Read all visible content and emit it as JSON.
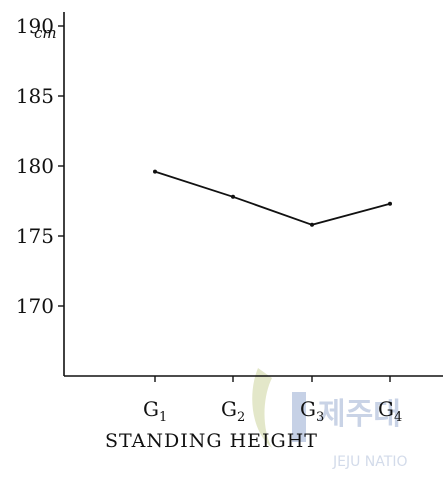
{
  "chart_data": {
    "type": "line",
    "categories": [
      "G1",
      "G2",
      "G3",
      "G4"
    ],
    "category_labels": [
      {
        "main": "G",
        "sub": "1"
      },
      {
        "main": "G",
        "sub": "2"
      },
      {
        "main": "G",
        "sub": "3"
      },
      {
        "main": "G",
        "sub": "4"
      }
    ],
    "values": [
      179.6,
      177.8,
      175.8,
      177.3
    ],
    "ylim": [
      165,
      191
    ],
    "yticks": [
      170,
      175,
      180,
      185,
      190
    ],
    "ytick_labels": [
      "170",
      "175",
      "180",
      "185",
      "190"
    ],
    "y_unit": "cm",
    "xlabel": "STANDING HEIGHT",
    "grid": false
  },
  "watermark": {
    "text": "제주대",
    "subtext": "JEJU NATIO"
  }
}
